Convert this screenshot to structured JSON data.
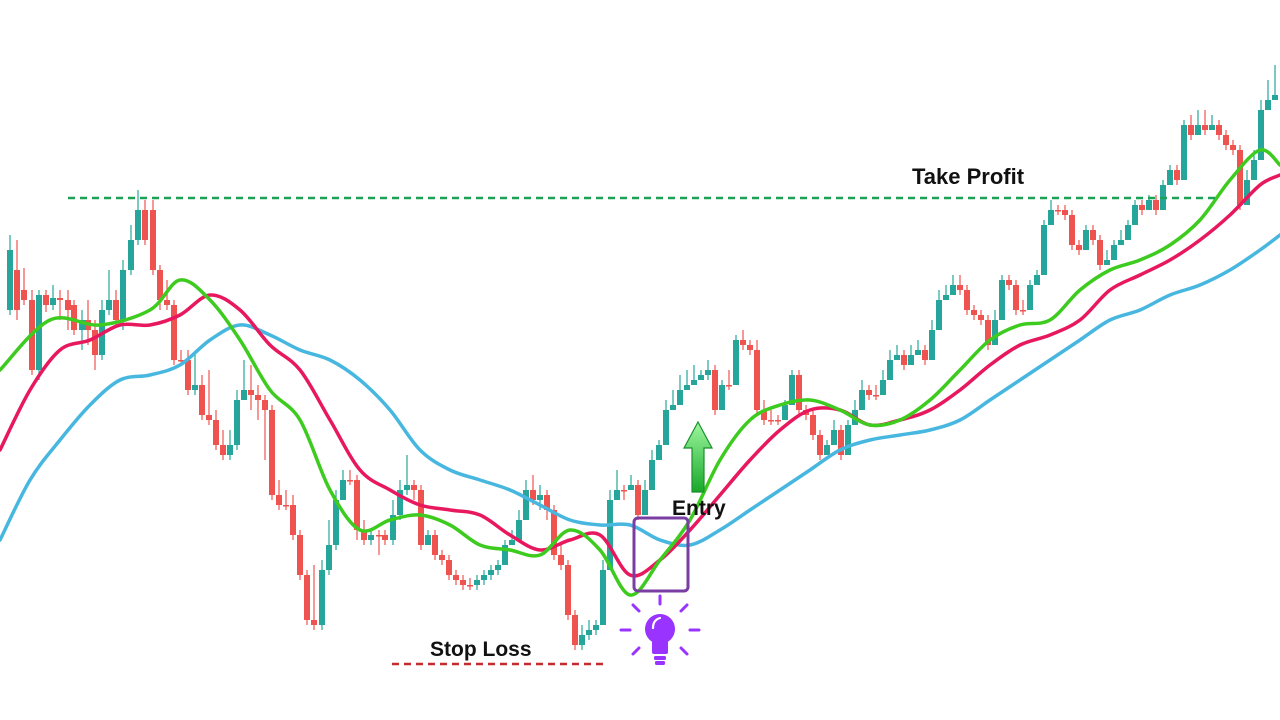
{
  "chart_data": {
    "type": "candlestick",
    "title": "",
    "xlabel": "",
    "ylabel": "",
    "axes_visible": false,
    "grid": false,
    "legend": "none",
    "ylim": [
      0,
      720
    ],
    "candles": [
      [
        10,
        310,
        250,
        315,
        235
      ],
      [
        17,
        270,
        310,
        320,
        240
      ],
      [
        24,
        290,
        300,
        305,
        268
      ],
      [
        32,
        300,
        370,
        375,
        290
      ],
      [
        39,
        370,
        295,
        380,
        290
      ],
      [
        46,
        295,
        305,
        312,
        290
      ],
      [
        53,
        305,
        298,
        310,
        285
      ],
      [
        60,
        298,
        300,
        320,
        290
      ],
      [
        68,
        300,
        310,
        330,
        290
      ],
      [
        74,
        305,
        330,
        335,
        300
      ],
      [
        82,
        330,
        320,
        350,
        310
      ],
      [
        88,
        320,
        330,
        345,
        300
      ],
      [
        95,
        330,
        355,
        370,
        320
      ],
      [
        102,
        355,
        310,
        360,
        300
      ],
      [
        109,
        310,
        300,
        315,
        270
      ],
      [
        116,
        300,
        320,
        325,
        290
      ],
      [
        123,
        320,
        270,
        330,
        260
      ],
      [
        131,
        270,
        240,
        275,
        225
      ],
      [
        138,
        240,
        210,
        245,
        190
      ],
      [
        145,
        210,
        240,
        245,
        200
      ],
      [
        153,
        210,
        270,
        275,
        200
      ],
      [
        160,
        270,
        300,
        310,
        265
      ],
      [
        167,
        300,
        305,
        310,
        280
      ],
      [
        174,
        305,
        360,
        365,
        300
      ],
      [
        181,
        360,
        360,
        362,
        350
      ],
      [
        188,
        360,
        390,
        395,
        350
      ],
      [
        195,
        390,
        385,
        395,
        355
      ],
      [
        202,
        385,
        415,
        420,
        375
      ],
      [
        209,
        415,
        420,
        425,
        370
      ],
      [
        216,
        420,
        445,
        450,
        410
      ],
      [
        223,
        445,
        455,
        460,
        430
      ],
      [
        230,
        455,
        445,
        460,
        430
      ],
      [
        237,
        445,
        400,
        450,
        390
      ],
      [
        244,
        400,
        390,
        395,
        360
      ],
      [
        251,
        390,
        395,
        410,
        365
      ],
      [
        258,
        395,
        400,
        420,
        385
      ],
      [
        265,
        400,
        410,
        460,
        395
      ],
      [
        272,
        410,
        495,
        500,
        405
      ],
      [
        279,
        495,
        505,
        510,
        480
      ],
      [
        286,
        505,
        505,
        510,
        490
      ],
      [
        293,
        505,
        535,
        540,
        495
      ],
      [
        300,
        535,
        575,
        580,
        530
      ],
      [
        307,
        575,
        620,
        625,
        570
      ],
      [
        314,
        620,
        625,
        630,
        565
      ],
      [
        322,
        625,
        570,
        630,
        560
      ],
      [
        329,
        570,
        545,
        575,
        520
      ],
      [
        336,
        545,
        500,
        550,
        490
      ],
      [
        343,
        500,
        480,
        490,
        470
      ],
      [
        350,
        480,
        480,
        485,
        470
      ],
      [
        357,
        480,
        530,
        540,
        475
      ],
      [
        364,
        530,
        540,
        545,
        520
      ],
      [
        371,
        540,
        535,
        545,
        530
      ],
      [
        379,
        535,
        535,
        555,
        530
      ],
      [
        385,
        535,
        540,
        545,
        530
      ],
      [
        393,
        540,
        515,
        545,
        500
      ],
      [
        400,
        515,
        490,
        520,
        480
      ],
      [
        407,
        490,
        485,
        495,
        455
      ],
      [
        414,
        485,
        490,
        500,
        480
      ],
      [
        421,
        490,
        545,
        550,
        485
      ],
      [
        428,
        545,
        535,
        545,
        530
      ],
      [
        435,
        535,
        555,
        560,
        530
      ],
      [
        442,
        555,
        560,
        565,
        550
      ],
      [
        449,
        560,
        575,
        580,
        555
      ],
      [
        456,
        575,
        580,
        585,
        570
      ],
      [
        463,
        580,
        585,
        590,
        575
      ],
      [
        470,
        585,
        585,
        590,
        578
      ],
      [
        477,
        585,
        580,
        590,
        575
      ],
      [
        484,
        580,
        575,
        585,
        570
      ],
      [
        491,
        575,
        570,
        580,
        565
      ],
      [
        498,
        570,
        565,
        575,
        560
      ],
      [
        505,
        565,
        545,
        550,
        540
      ],
      [
        512,
        545,
        540,
        545,
        530
      ],
      [
        519,
        540,
        520,
        525,
        510
      ],
      [
        526,
        520,
        490,
        495,
        480
      ],
      [
        533,
        490,
        500,
        505,
        475
      ],
      [
        540,
        500,
        495,
        510,
        485
      ],
      [
        547,
        495,
        510,
        520,
        490
      ],
      [
        554,
        510,
        555,
        560,
        505
      ],
      [
        561,
        555,
        565,
        570,
        545
      ],
      [
        568,
        565,
        615,
        620,
        560
      ],
      [
        575,
        615,
        645,
        650,
        610
      ],
      [
        582,
        645,
        635,
        650,
        625
      ],
      [
        589,
        635,
        630,
        640,
        620
      ],
      [
        596,
        630,
        625,
        635,
        620
      ],
      [
        603,
        625,
        570,
        575,
        560
      ],
      [
        610,
        570,
        500,
        505,
        490
      ],
      [
        617,
        500,
        490,
        495,
        470
      ],
      [
        624,
        490,
        490,
        500,
        485
      ],
      [
        631,
        490,
        485,
        490,
        475
      ],
      [
        638,
        485,
        515,
        520,
        480
      ],
      [
        645,
        515,
        490,
        495,
        480
      ],
      [
        652,
        490,
        460,
        465,
        450
      ],
      [
        659,
        460,
        445,
        450,
        440
      ],
      [
        666,
        445,
        410,
        415,
        400
      ],
      [
        673,
        410,
        405,
        410,
        390
      ],
      [
        680,
        405,
        390,
        395,
        375
      ],
      [
        687,
        390,
        385,
        390,
        370
      ],
      [
        694,
        385,
        380,
        385,
        365
      ],
      [
        701,
        380,
        375,
        380,
        370
      ],
      [
        708,
        375,
        370,
        380,
        360
      ],
      [
        715,
        370,
        410,
        415,
        365
      ],
      [
        722,
        410,
        385,
        390,
        380
      ],
      [
        729,
        385,
        385,
        390,
        370
      ],
      [
        736,
        385,
        340,
        345,
        335
      ],
      [
        743,
        340,
        345,
        350,
        330
      ],
      [
        750,
        345,
        350,
        355,
        340
      ],
      [
        757,
        350,
        410,
        415,
        340
      ],
      [
        764,
        410,
        420,
        425,
        400
      ],
      [
        771,
        420,
        420,
        425,
        410
      ],
      [
        778,
        420,
        420,
        425,
        415
      ],
      [
        785,
        420,
        405,
        410,
        400
      ],
      [
        792,
        405,
        375,
        380,
        370
      ],
      [
        799,
        375,
        410,
        415,
        370
      ],
      [
        806,
        410,
        415,
        420,
        405
      ],
      [
        813,
        415,
        435,
        440,
        410
      ],
      [
        820,
        435,
        455,
        460,
        430
      ],
      [
        827,
        455,
        445,
        450,
        440
      ],
      [
        834,
        445,
        430,
        435,
        420
      ],
      [
        841,
        430,
        455,
        460,
        425
      ],
      [
        848,
        455,
        425,
        430,
        420
      ],
      [
        855,
        425,
        410,
        415,
        400
      ],
      [
        862,
        410,
        390,
        395,
        380
      ],
      [
        869,
        390,
        395,
        400,
        385
      ],
      [
        876,
        395,
        395,
        400,
        385
      ],
      [
        883,
        395,
        380,
        385,
        370
      ],
      [
        890,
        380,
        360,
        365,
        350
      ],
      [
        897,
        360,
        355,
        360,
        345
      ],
      [
        904,
        355,
        365,
        370,
        350
      ],
      [
        911,
        365,
        355,
        360,
        345
      ],
      [
        918,
        355,
        350,
        355,
        340
      ],
      [
        925,
        350,
        360,
        365,
        345
      ],
      [
        932,
        360,
        330,
        335,
        320
      ],
      [
        939,
        330,
        300,
        305,
        290
      ],
      [
        946,
        300,
        295,
        300,
        285
      ],
      [
        953,
        295,
        285,
        290,
        275
      ],
      [
        960,
        285,
        290,
        295,
        275
      ],
      [
        967,
        290,
        310,
        315,
        285
      ],
      [
        974,
        310,
        315,
        320,
        305
      ],
      [
        981,
        315,
        320,
        325,
        310
      ],
      [
        988,
        320,
        345,
        350,
        315
      ],
      [
        995,
        345,
        320,
        325,
        310
      ],
      [
        1002,
        320,
        280,
        285,
        275
      ],
      [
        1009,
        280,
        285,
        290,
        275
      ],
      [
        1016,
        285,
        310,
        315,
        280
      ],
      [
        1023,
        310,
        310,
        315,
        300
      ],
      [
        1030,
        310,
        285,
        290,
        280
      ],
      [
        1037,
        285,
        275,
        280,
        270
      ],
      [
        1044,
        275,
        225,
        230,
        220
      ],
      [
        1051,
        225,
        210,
        215,
        200
      ],
      [
        1058,
        210,
        210,
        215,
        205
      ],
      [
        1065,
        210,
        215,
        220,
        205
      ],
      [
        1072,
        215,
        245,
        250,
        210
      ],
      [
        1079,
        245,
        250,
        255,
        240
      ],
      [
        1086,
        250,
        230,
        235,
        225
      ],
      [
        1093,
        230,
        240,
        245,
        225
      ],
      [
        1100,
        240,
        265,
        270,
        235
      ],
      [
        1107,
        265,
        260,
        265,
        250
      ],
      [
        1114,
        260,
        245,
        250,
        240
      ],
      [
        1121,
        245,
        240,
        245,
        230
      ],
      [
        1128,
        240,
        225,
        230,
        220
      ],
      [
        1135,
        225,
        205,
        210,
        200
      ],
      [
        1142,
        205,
        210,
        215,
        200
      ],
      [
        1149,
        210,
        200,
        205,
        195
      ],
      [
        1156,
        200,
        210,
        215,
        195
      ],
      [
        1163,
        210,
        185,
        190,
        180
      ],
      [
        1170,
        185,
        170,
        175,
        165
      ],
      [
        1177,
        170,
        180,
        185,
        165
      ],
      [
        1184,
        180,
        125,
        130,
        120
      ],
      [
        1191,
        125,
        135,
        140,
        115
      ],
      [
        1198,
        135,
        125,
        130,
        110
      ],
      [
        1205,
        125,
        130,
        135,
        110
      ],
      [
        1212,
        130,
        125,
        130,
        115
      ],
      [
        1219,
        125,
        135,
        140,
        120
      ],
      [
        1226,
        135,
        145,
        150,
        130
      ],
      [
        1233,
        145,
        150,
        155,
        140
      ],
      [
        1240,
        150,
        205,
        210,
        145
      ],
      [
        1247,
        205,
        180,
        185,
        170
      ],
      [
        1254,
        180,
        160,
        165,
        150
      ],
      [
        1261,
        160,
        110,
        115,
        100
      ],
      [
        1268,
        110,
        100,
        105,
        80
      ],
      [
        1275,
        100,
        95,
        100,
        65
      ]
    ],
    "series": [
      {
        "kind": "ma-green",
        "x": [
          0,
          50,
          100,
          150,
          180,
          210,
          240,
          270,
          300,
          330,
          360,
          390,
          420,
          450,
          480,
          510,
          540,
          570,
          600,
          630,
          660,
          690,
          720,
          750,
          780,
          810,
          840,
          870,
          900,
          930,
          960,
          990,
          1020,
          1050,
          1080,
          1110,
          1140,
          1170,
          1200,
          1230,
          1260,
          1280
        ],
        "y": [
          370,
          320,
          325,
          310,
          280,
          300,
          340,
          390,
          420,
          490,
          530,
          520,
          515,
          525,
          545,
          550,
          555,
          530,
          550,
          595,
          560,
          520,
          460,
          420,
          405,
          400,
          410,
          425,
          420,
          400,
          370,
          340,
          325,
          320,
          290,
          270,
          260,
          245,
          220,
          180,
          150,
          165
        ]
      },
      {
        "kind": "ma-pink",
        "x": [
          0,
          30,
          60,
          90,
          120,
          150,
          180,
          210,
          240,
          270,
          300,
          330,
          360,
          390,
          420,
          450,
          480,
          510,
          540,
          570,
          600,
          630,
          660,
          690,
          720,
          750,
          780,
          810,
          840,
          870,
          900,
          930,
          960,
          990,
          1020,
          1050,
          1080,
          1110,
          1140,
          1170,
          1200,
          1230,
          1260,
          1280
        ],
        "y": [
          450,
          390,
          350,
          340,
          325,
          325,
          315,
          295,
          310,
          345,
          370,
          420,
          470,
          490,
          505,
          510,
          515,
          535,
          550,
          540,
          535,
          575,
          560,
          530,
          495,
          460,
          430,
          410,
          410,
          425,
          420,
          410,
          390,
          365,
          345,
          335,
          320,
          290,
          275,
          260,
          240,
          215,
          185,
          175
        ]
      },
      {
        "kind": "ma-blue",
        "x": [
          0,
          30,
          60,
          90,
          120,
          150,
          180,
          210,
          240,
          270,
          300,
          330,
          360,
          390,
          420,
          450,
          480,
          510,
          540,
          570,
          600,
          630,
          660,
          690,
          720,
          750,
          780,
          810,
          840,
          870,
          900,
          930,
          960,
          990,
          1020,
          1050,
          1080,
          1110,
          1140,
          1170,
          1200,
          1230,
          1260,
          1280
        ],
        "y": [
          540,
          480,
          440,
          405,
          380,
          375,
          365,
          340,
          325,
          335,
          350,
          360,
          380,
          410,
          450,
          470,
          480,
          490,
          505,
          520,
          525,
          525,
          540,
          545,
          530,
          510,
          490,
          470,
          450,
          440,
          435,
          430,
          420,
          400,
          380,
          360,
          340,
          320,
          310,
          295,
          285,
          270,
          250,
          235
        ]
      }
    ],
    "levels": [
      {
        "name": "Take Profit",
        "value": 198
      },
      {
        "name": "Stop Loss",
        "value": 664
      }
    ],
    "annotations": {
      "take_profit": "Take Profit",
      "stop_loss": "Stop Loss",
      "entry": "Entry"
    },
    "colors": {
      "bull": "#26a69a",
      "bear": "#ef5350",
      "ma_green": "#3ecb1f",
      "ma_pink": "#e8185f",
      "ma_blue": "#47b7e0",
      "take_profit_line": "#1aa357",
      "stop_loss_line": "#c42b2b",
      "entry_box": "#7a3ea2",
      "entry_arrow": "#3ec64a",
      "bulb": "#9933ff"
    }
  }
}
